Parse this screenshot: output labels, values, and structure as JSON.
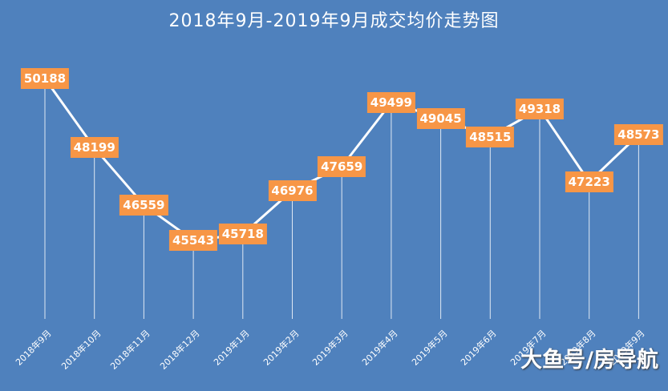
{
  "title": "2018年9月-2019年9月成交均价走势图",
  "watermark": "大鱼号/房导航",
  "colors": {
    "background": "#4f81bd",
    "label_bg": "#f79646",
    "line": "#ffffff"
  },
  "chart_data": {
    "type": "line",
    "title": "2018年9月-2019年9月成交均价走势图",
    "categories": [
      "2018年9月",
      "2018年10月",
      "2018年11月",
      "2018年12月",
      "2019年1月",
      "2019年2月",
      "2019年3月",
      "2019年4月",
      "2019年5月",
      "2019年6月",
      "2019年7月",
      "2019年8月",
      "2019年9月"
    ],
    "values": [
      50188,
      48199,
      46559,
      45543,
      45718,
      46976,
      47659,
      49499,
      49045,
      48515,
      49318,
      47223,
      48573
    ],
    "xlabel": "",
    "ylabel": "",
    "grid": false,
    "data_labels": true,
    "drop_lines": true
  }
}
